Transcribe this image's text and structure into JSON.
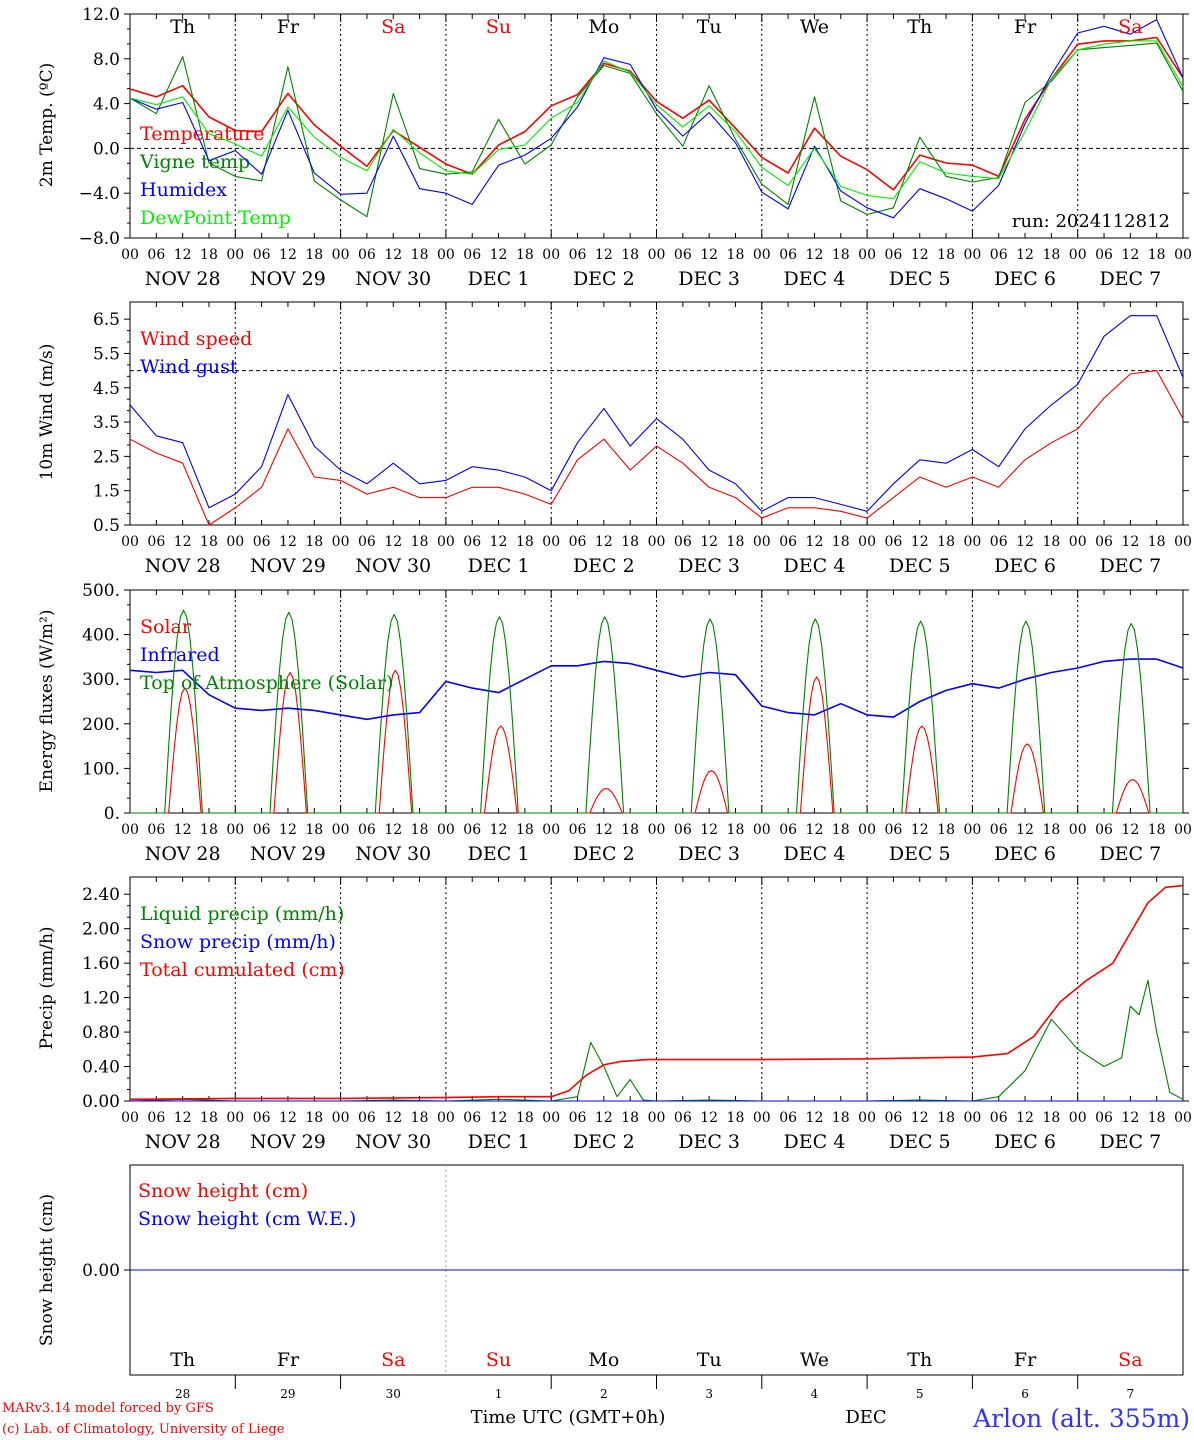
{
  "footer": {
    "credit_line1": "MARv3.14 model forced by GFS",
    "credit_line2": "(c) Lab. of Climatology, University of Liege",
    "xaxis_title": "Time UTC (GMT+0h)",
    "month_label": "DEC",
    "station": "Arlon (alt. 355m)"
  },
  "colors": {
    "red": "#ff0000",
    "green": "#008000",
    "blue": "#0000ff",
    "lime": "#00ee00",
    "gray": "#999999"
  },
  "day_names": [
    {
      "label": "Th",
      "color": "#000000"
    },
    {
      "label": "Fr",
      "color": "#000000"
    },
    {
      "label": "Sa",
      "color": "#ff0000"
    },
    {
      "label": "Su",
      "color": "#ff0000"
    },
    {
      "label": "Mo",
      "color": "#000000"
    },
    {
      "label": "Tu",
      "color": "#000000"
    },
    {
      "label": "We",
      "color": "#000000"
    },
    {
      "label": "Th",
      "color": "#000000"
    },
    {
      "label": "Fr",
      "color": "#000000"
    },
    {
      "label": "Sa",
      "color": "#ff0000"
    }
  ],
  "day_numbers": [
    "28",
    "29",
    "30",
    "1",
    "2",
    "3",
    "4",
    "5",
    "6",
    "7"
  ],
  "date_labels": [
    "NOV 28",
    "NOV 29",
    "NOV 30",
    "DEC  1",
    "DEC  2",
    "DEC  3",
    "DEC  4",
    "DEC  5",
    "DEC  6",
    "DEC  7"
  ],
  "hour_labels": [
    "00",
    "06",
    "12",
    "18"
  ],
  "chart_data": [
    {
      "type": "line",
      "ylabel": "2m Temp. (ºC)",
      "ylim": [
        -8,
        12
      ],
      "yticks": [
        "12.0",
        "8.0",
        "4.0",
        "0.0",
        "−4.0",
        "−8.0"
      ],
      "yticks_values": [
        12,
        8,
        4,
        0,
        -4,
        -8
      ],
      "reference_line": 0,
      "annotation": "run: 2024112812",
      "x_hours": [
        0,
        6,
        12,
        18,
        24,
        30,
        36,
        42,
        48,
        54,
        60,
        66,
        72,
        78,
        84,
        90,
        96,
        102,
        108,
        114,
        120,
        126,
        132,
        138,
        144,
        150,
        156,
        162,
        168,
        174,
        180,
        186,
        192,
        198,
        204,
        210,
        216,
        222,
        228,
        234,
        240
      ],
      "series": [
        {
          "name": "Temperature",
          "color": "#ff0000",
          "values": [
            5.3,
            4.6,
            5.6,
            2.8,
            1.6,
            1.5,
            4.9,
            2.1,
            0.2,
            -1.6,
            1.6,
            0.1,
            -1.4,
            -2.3,
            0.3,
            1.5,
            3.8,
            4.8,
            7.6,
            6.9,
            4.2,
            2.7,
            4.3,
            1.8,
            -0.8,
            -2.2,
            1.8,
            -0.7,
            -1.9,
            -3.7,
            -0.6,
            -1.3,
            -1.5,
            -2.5,
            2.6,
            6.2,
            9.3,
            9.6,
            9.6,
            9.9,
            6.3
          ]
        },
        {
          "name": "Vigne temp",
          "color": "#008000",
          "values": [
            4.5,
            3.1,
            8.2,
            -1.3,
            -2.5,
            -2.9,
            7.3,
            -2.9,
            -4.6,
            -6.1,
            4.9,
            -1.8,
            -2.3,
            -2.1,
            2.6,
            -1.4,
            0.3,
            4.6,
            7.4,
            6.7,
            3.1,
            0.2,
            5.6,
            0.8,
            -3.2,
            -5.0,
            4.6,
            -4.7,
            -5.9,
            -5.3,
            1.0,
            -2.5,
            -3.0,
            -2.6,
            4.1,
            6.0,
            8.8,
            9.0,
            9.2,
            9.4,
            5.1
          ]
        },
        {
          "name": "Humidex",
          "color": "#0000ff",
          "values": [
            4.5,
            3.5,
            4.1,
            -1.1,
            -0.2,
            -2.3,
            3.4,
            -2.2,
            -4.1,
            -4.0,
            1.1,
            -3.6,
            -4.0,
            -5.0,
            -1.5,
            -0.6,
            0.9,
            3.7,
            8.1,
            7.5,
            3.5,
            1.1,
            3.2,
            0.5,
            -3.9,
            -5.4,
            0.2,
            -3.8,
            -5.3,
            -6.2,
            -3.6,
            -4.5,
            -5.6,
            -3.3,
            2.2,
            6.6,
            10.3,
            10.9,
            10.2,
            11.5,
            6.3
          ]
        },
        {
          "name": "DewPoint Temp",
          "color": "#00ee00",
          "values": [
            4.5,
            3.9,
            4.6,
            1.3,
            0.4,
            -0.7,
            3.7,
            1.0,
            -0.8,
            -2.0,
            1.7,
            -0.4,
            -2.0,
            -2.3,
            -0.1,
            0.3,
            2.7,
            4.1,
            7.8,
            6.8,
            3.9,
            1.9,
            3.8,
            1.5,
            -1.7,
            -3.3,
            0.0,
            -3.4,
            -4.2,
            -4.5,
            -1.2,
            -2.2,
            -2.5,
            -2.7,
            1.5,
            6.2,
            8.8,
            9.3,
            9.6,
            9.6,
            5.5
          ]
        }
      ]
    },
    {
      "type": "line",
      "ylabel": "10m Wind (m/s)",
      "ylim": [
        0.5,
        7.0
      ],
      "yticks": [
        "6.5",
        "5.5",
        "4.5",
        "3.5",
        "2.5",
        "1.5",
        "0.5"
      ],
      "yticks_values": [
        6.5,
        5.5,
        4.5,
        3.5,
        2.5,
        1.5,
        0.5
      ],
      "reference_line": 5.0,
      "x_hours": [
        0,
        6,
        12,
        18,
        24,
        30,
        36,
        42,
        48,
        54,
        60,
        66,
        72,
        78,
        84,
        90,
        96,
        102,
        108,
        114,
        120,
        126,
        132,
        138,
        144,
        150,
        156,
        162,
        168,
        174,
        180,
        186,
        192,
        198,
        204,
        210,
        216,
        222,
        228,
        234,
        240
      ],
      "series": [
        {
          "name": "Wind speed",
          "color": "#ff0000",
          "values": [
            3.0,
            2.6,
            2.3,
            0.5,
            1.0,
            1.6,
            3.3,
            1.9,
            1.8,
            1.4,
            1.6,
            1.3,
            1.3,
            1.6,
            1.6,
            1.4,
            1.1,
            2.4,
            3.0,
            2.1,
            2.8,
            2.3,
            1.6,
            1.3,
            0.7,
            1.0,
            1.0,
            0.9,
            0.7,
            1.3,
            1.9,
            1.6,
            1.9,
            1.6,
            2.4,
            2.9,
            3.3,
            4.2,
            4.9,
            5.0,
            3.6
          ]
        },
        {
          "name": "Wind gust",
          "color": "#0000ff",
          "values": [
            4.0,
            3.1,
            2.9,
            1.0,
            1.4,
            2.2,
            4.3,
            2.8,
            2.1,
            1.7,
            2.3,
            1.7,
            1.8,
            2.2,
            2.1,
            1.9,
            1.5,
            2.9,
            3.9,
            2.8,
            3.6,
            3.0,
            2.1,
            1.7,
            0.9,
            1.3,
            1.3,
            1.1,
            0.9,
            1.7,
            2.4,
            2.3,
            2.7,
            2.2,
            3.3,
            4.0,
            4.6,
            6.0,
            6.6,
            6.6,
            4.8
          ]
        }
      ]
    },
    {
      "type": "line",
      "ylabel": "Energy fluxes (W/m²)",
      "ylim": [
        0,
        500
      ],
      "yticks": [
        "500.",
        "400.",
        "300.",
        "200.",
        "100.",
        "0."
      ],
      "yticks_values": [
        500,
        400,
        300,
        200,
        100,
        0
      ],
      "series": [
        {
          "name": "Solar",
          "color": "#ff0000",
          "daily_peaks": [
            280,
            315,
            320,
            195,
            55,
            95,
            305,
            195,
            155,
            75
          ],
          "daily_noon_hour": 12.5,
          "daily_halfwidth_hours": 3.7
        },
        {
          "name": "Infrared",
          "color": "#0000ff",
          "x_hours": [
            0,
            6,
            12,
            18,
            24,
            30,
            36,
            42,
            48,
            54,
            60,
            66,
            72,
            78,
            84,
            90,
            96,
            102,
            108,
            114,
            120,
            126,
            132,
            138,
            144,
            150,
            156,
            162,
            168,
            174,
            180,
            186,
            192,
            198,
            204,
            210,
            216,
            222,
            228,
            234,
            240
          ],
          "values": [
            320,
            315,
            320,
            265,
            235,
            230,
            235,
            230,
            220,
            210,
            220,
            225,
            295,
            280,
            270,
            300,
            330,
            330,
            340,
            335,
            320,
            305,
            315,
            310,
            240,
            225,
            220,
            245,
            220,
            215,
            250,
            275,
            290,
            280,
            300,
            315,
            325,
            340,
            345,
            345,
            325
          ]
        },
        {
          "name": "Top of Atmosphere (Solar)",
          "color": "#008000",
          "daily_peaks": [
            455,
            450,
            445,
            440,
            440,
            435,
            435,
            430,
            430,
            425
          ],
          "daily_noon_hour": 12.2,
          "daily_halfwidth_hours": 4.3
        }
      ]
    },
    {
      "type": "line",
      "ylabel": "Precip (mm/h)",
      "ylim": [
        0,
        2.6
      ],
      "yticks": [
        "2.40",
        "2.00",
        "1.60",
        "1.20",
        "0.80",
        "0.40",
        "0.00"
      ],
      "yticks_values": [
        2.4,
        2.0,
        1.6,
        1.2,
        0.8,
        0.4,
        0.0
      ],
      "series": [
        {
          "name": "Liquid precip (mm/h)",
          "color": "#008000",
          "x_hours": [
            0,
            12,
            24,
            36,
            48,
            60,
            72,
            84,
            96,
            102,
            105,
            108,
            111,
            114,
            117,
            120,
            132,
            144,
            156,
            168,
            180,
            192,
            198,
            204,
            210,
            216,
            222,
            226,
            228,
            230,
            232,
            234,
            237,
            240
          ],
          "values": [
            0.0,
            0.02,
            0.0,
            0.0,
            0.0,
            0.01,
            0.0,
            0.02,
            0.0,
            0.05,
            0.68,
            0.4,
            0.05,
            0.25,
            0.01,
            0.0,
            0.01,
            0.0,
            0.0,
            0.0,
            0.01,
            0.0,
            0.05,
            0.35,
            0.95,
            0.6,
            0.4,
            0.5,
            1.1,
            1.0,
            1.4,
            0.8,
            0.1,
            0.02
          ]
        },
        {
          "name": "Snow precip (mm/h)",
          "color": "#0000ff",
          "x_hours": [
            0,
            240
          ],
          "values": [
            0.0,
            0.0
          ]
        },
        {
          "name": "Total cumulated (cm)",
          "color": "#ff0000",
          "x_hours": [
            0,
            24,
            48,
            72,
            84,
            96,
            100,
            104,
            108,
            112,
            118,
            132,
            144,
            168,
            192,
            200,
            206,
            212,
            218,
            224,
            228,
            232,
            236,
            240
          ],
          "values": [
            0.02,
            0.03,
            0.03,
            0.04,
            0.05,
            0.05,
            0.12,
            0.3,
            0.42,
            0.46,
            0.48,
            0.48,
            0.48,
            0.49,
            0.51,
            0.55,
            0.75,
            1.15,
            1.4,
            1.6,
            1.95,
            2.3,
            2.48,
            2.5
          ]
        }
      ]
    },
    {
      "type": "line",
      "ylabel": "Snow height (cm)",
      "yticks": [
        "0.00"
      ],
      "yticks_values": [
        0
      ],
      "series": [
        {
          "name": "Snow height (cm)",
          "color": "#ff0000",
          "values": [
            0,
            0
          ]
        },
        {
          "name": "Snow height (cm W.E.)",
          "color": "#0000ff",
          "values": [
            0,
            0
          ]
        }
      ]
    }
  ]
}
